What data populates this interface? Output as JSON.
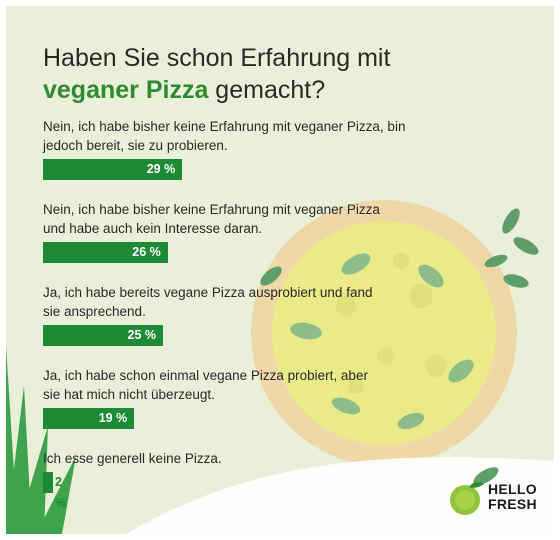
{
  "title": {
    "line1": "Haben Sie schon Erfahrung mit",
    "highlight": "veganer Pizza",
    "rest": " gemacht?"
  },
  "chart_data": {
    "type": "bar",
    "orientation": "horizontal",
    "categories": [
      "Nein, ich habe bisher keine Erfahrung mit veganer Pizza, bin jedoch bereit, sie zu probieren.",
      "Nein, ich habe bisher keine Erfahrung mit veganer Pizza und habe auch kein Interesse daran.",
      "Ja, ich habe bereits vegane Pizza ausprobiert und fand sie ansprechend.",
      "Ja, ich habe schon einmal vegane Pizza probiert, aber sie hat mich nicht überzeugt.",
      "Ich esse generell keine Pizza."
    ],
    "values": [
      29,
      26,
      25,
      19,
      2
    ],
    "value_labels": [
      "29 %",
      "26 %",
      "25 %",
      "19 %",
      "2 %"
    ],
    "xlim": [
      0,
      100
    ],
    "bar_color": "#1f8a35"
  },
  "logo": {
    "line1": "HELLO",
    "line2": "FRESH"
  },
  "colors": {
    "background": "#e9efd9",
    "accent": "#2e8b2e",
    "bar": "#1f8a35"
  }
}
